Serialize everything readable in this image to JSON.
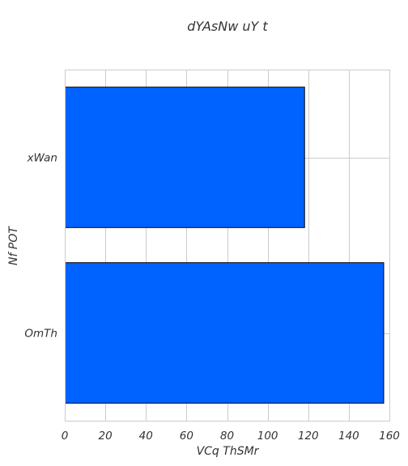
{
  "chart_data": {
    "type": "bar",
    "orientation": "horizontal",
    "title": "dYAsNw uY t",
    "xlabel": "VCq ThSMr",
    "ylabel": "Nf POT",
    "categories": [
      "xWan",
      "OmTh"
    ],
    "values": [
      118,
      157
    ],
    "xlim": [
      0,
      160
    ],
    "xticks": [
      0,
      20,
      40,
      60,
      80,
      100,
      120,
      140,
      160
    ],
    "grid": true,
    "bar_color": "#0062ff",
    "bar_edge_color": "#000000"
  }
}
